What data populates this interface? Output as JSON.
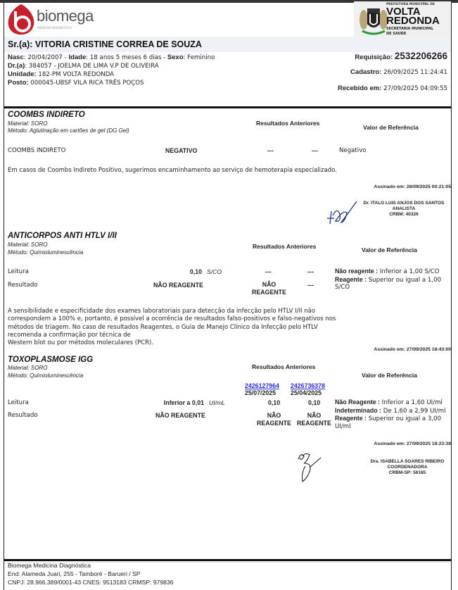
{
  "lab_logo": {
    "name": "biomega",
    "subtitle": "MEDICINA DIAGNÓSTICA",
    "color": "#c8202a"
  },
  "gov_logo": {
    "line1": "PREFEITURA MUNICIPAL DE",
    "line2": "VOLTA",
    "line3": "REDONDA",
    "line4": "SECRETARIA MUNICIPAL",
    "line5": "DE SAUDE"
  },
  "patient": {
    "name": "Sr.(a): VITORIA CRISTINE CORREA DE SOUZA",
    "nasc_label": "Nasc",
    "nasc": ": 20/04/2007 - ",
    "idade_label": "Idade",
    "idade": ": 18 anos 5 meses 6 dias  - ",
    "sexo_label": "Sexo",
    "sexo": ": Feminino",
    "dr_label": "Dr.(a)",
    "dr": ": 384057 - JOELMA DE LIMA V.P DE OLIVEIRA",
    "unidade_label": "Unidade:",
    "unidade": " 182-PM VOLTA REDONDA",
    "posto_label": "Posto:",
    "posto": " 000045-UBSF VILA RICA TRÊS POÇOS",
    "requisicao_label": "Requisição:",
    "requisicao": "2532206266",
    "cadastro_label": "Cadastro:",
    "cadastro": "26/09/2025 11:24:41",
    "recebido_label": "Recebido em:",
    "recebido": "27/09/2025 04:09:55"
  },
  "common": {
    "prev_header": "Resultados Anteriores",
    "ref_header": "Valor de Referência"
  },
  "exams": [
    {
      "title": "COOMBS INDIRETO",
      "material": "Material:  SORO",
      "metodo": "Método:  Aglutinação em cartões de gel (DG Gel)",
      "row": {
        "label": "COOMBS INDIRETO",
        "value": "NEGATIVO",
        "prev1": "---",
        "prev2": "---",
        "ref": "Negativo"
      },
      "note": "Em casos de Coombs Indireto Positivo, sugerimos encaminhamento ao serviço de hemoterapia especializado.",
      "signed": "Assinado em: 28/09/2025 00:21:05",
      "signer": {
        "name": "Dr. ITALO LUIS ANJOS DOS SANTOS",
        "role": "ANALISTA",
        "reg": "CRBM: 40326"
      }
    },
    {
      "title": "ANTICORPOS ANTI HTLV I/II",
      "material": "Material:  SORO",
      "metodo": "Método:  Quimioluminescência",
      "leitura": {
        "label": "Leitura",
        "value": "0,10",
        "unit": "S/CO",
        "prev1": "---",
        "prev2": "---"
      },
      "resultado": {
        "label": "Resultado",
        "value": "NÃO REAGENTE",
        "prev1": "NÃO REAGENTE",
        "prev2": "---"
      },
      "refs": [
        {
          "k": "Não reagente :",
          "v": " Inferior a 1,00 S/CO"
        },
        {
          "k": "Reagente :",
          "v": " Superior ou igual a 1,00 S/CO"
        }
      ],
      "note": "A sensibilidade e especificidade dos exames laboratoriais para detecção da infecção pelo HTLV I/II não correspondem a 100% e, portanto, é possível a ocorrência de resultados falso-positivos e falso-negativos nos métodos de triagem. No caso de resultados Reagentes, o Guia de Manejo Clínico da Infecção pelo HTLV recomenda a confirmação por técnica de",
      "note2": "Western blot ou por métodos moleculares (PCR).",
      "signed": "Assinado em: 27/09/2025 18:43:00"
    },
    {
      "title": "TOXOPLASMOSE IGG",
      "material": "Material:  SORO",
      "metodo": "Método:  Quimioluminescência",
      "prev_links": [
        {
          "id": "2426127964",
          "date": "25/07/2025"
        },
        {
          "id": "2426736378",
          "date": "25/04/2025"
        }
      ],
      "leitura": {
        "label": "Leitura",
        "value": "Inferior a 0,01",
        "unit": "UI/mL",
        "prev1": "0,10",
        "prev2": "0,10"
      },
      "resultado": {
        "label": "Resultado",
        "value": "NÃO REAGENTE",
        "prev1": "NÃO REAGENTE",
        "prev2": "NÃO REAGENTE"
      },
      "refs": [
        {
          "k": "Não Reagente :",
          "v": " Inferior a 1,60 UI/ml"
        },
        {
          "k": "Indeterminado :",
          "v": " De 1,60 a 2,99 UI/ml"
        },
        {
          "k": "Reagente :",
          "v": " Superior ou igual a 3,00 UI/ml"
        }
      ],
      "signed": "Assinado em: 27/09/2025 18:23:38",
      "signer": {
        "name": "Dra. ISABELLA SOARES RIBEIRO",
        "role": "COORDENADORA",
        "reg": "CRBM-SP: 56165"
      }
    }
  ],
  "footer": {
    "line1": "Biomega Medicina Diagnóstica",
    "line2": "End: Alameda Juari, 255 - Tamboré - Barueri / SP",
    "line3": "CNPJ: 28.966.389/0001-43 CNES: 9513183 CRMSP: 979836"
  }
}
